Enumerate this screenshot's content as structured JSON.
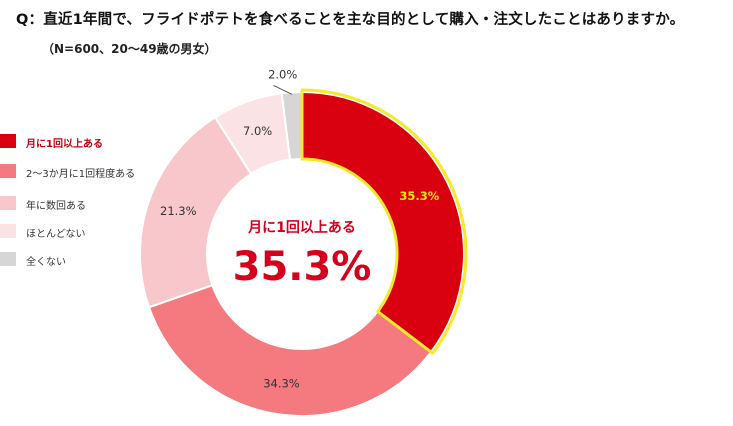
{
  "title": "Q：直近1年間で、フライドポテトを食べることを主な目的として購入・注文したことはありますか。",
  "subtitle": "（N=600、20〜49歳の男女）",
  "chart_data": {
    "type": "pie",
    "donut": true,
    "categories": [
      "月に1回以上ある",
      "2〜3か月に1回程度ある",
      "年に数回ある",
      "ほとんどない",
      "全くない"
    ],
    "values": [
      35.3,
      34.3,
      21.3,
      7.0,
      2.0
    ],
    "value_labels": [
      "35.3%",
      "34.3%",
      "21.3%",
      "7.0%",
      "2.0%"
    ],
    "colors": [
      "#d9000f",
      "#f47a80",
      "#f7c7cb",
      "#fbe3e5",
      "#d6d6d6"
    ],
    "highlight": {
      "category": "月に1回以上ある",
      "outline_color": "#f5ea2a",
      "label_color": "#f6e600"
    },
    "center_text": {
      "label": "月に1回以上ある",
      "value": "35.3%"
    },
    "legend_position": "left",
    "start_angle": "top",
    "direction": "clockwise"
  }
}
